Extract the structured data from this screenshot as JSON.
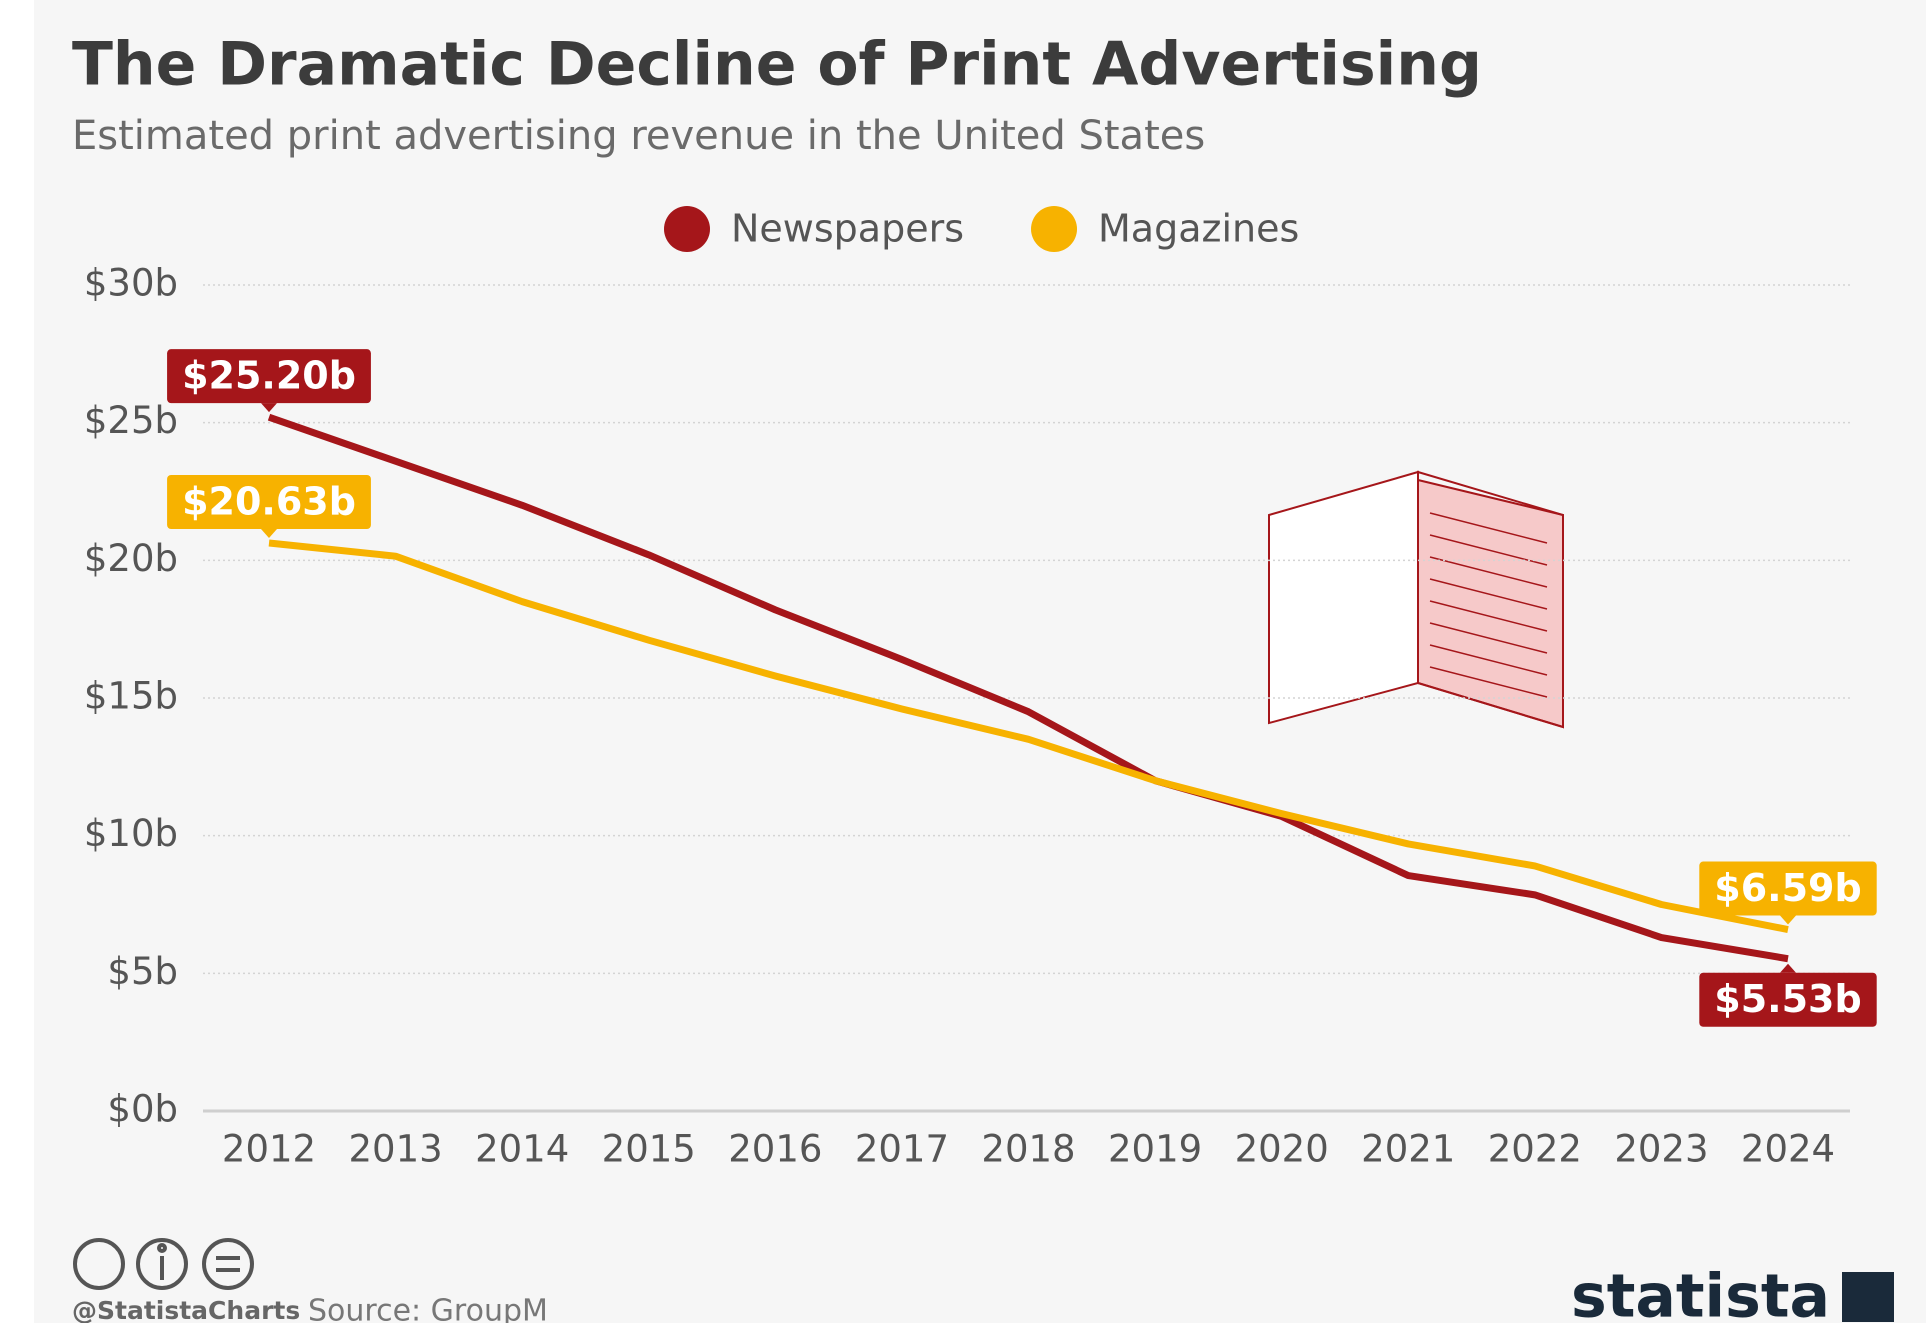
{
  "chart_data": {
    "type": "line",
    "title": "The Dramatic Decline of Print Advertising",
    "subtitle": "Estimated print advertising revenue in the United States",
    "categories": [
      "2012",
      "2013",
      "2014",
      "2015",
      "2016",
      "2017",
      "2018",
      "2019",
      "2020",
      "2021",
      "2022",
      "2023",
      "2024"
    ],
    "series": [
      {
        "name": "Newspapers",
        "color": "#a5161a",
        "values": [
          25.2,
          23.6,
          22.0,
          20.2,
          18.2,
          16.4,
          14.5,
          12.0,
          10.7,
          8.55,
          7.85,
          6.3,
          5.53
        ],
        "value_labels": [
          "$25.20b",
          null,
          null,
          null,
          null,
          null,
          null,
          null,
          null,
          null,
          null,
          null,
          "$5.53b"
        ]
      },
      {
        "name": "Magazines",
        "color": "#f7b200",
        "values": [
          20.63,
          20.15,
          18.5,
          17.1,
          15.8,
          14.6,
          13.5,
          12.0,
          10.8,
          9.7,
          8.9,
          7.5,
          6.59
        ],
        "value_labels": [
          "$20.63b",
          null,
          null,
          null,
          null,
          null,
          null,
          null,
          null,
          null,
          null,
          null,
          "$6.59b"
        ]
      }
    ],
    "ylim": [
      0,
      30
    ],
    "yticks": [
      {
        "value": 0,
        "label": "$0b"
      },
      {
        "value": 5,
        "label": "$5b"
      },
      {
        "value": 10,
        "label": "$10b"
      },
      {
        "value": 15,
        "label": "$15b"
      },
      {
        "value": 20,
        "label": "$20b"
      },
      {
        "value": 25,
        "label": "$25b"
      },
      {
        "value": 30,
        "label": "$30b"
      }
    ],
    "grid": true,
    "legend": "top",
    "credit": "@StatistaCharts",
    "source": "Source: GroupM",
    "brand": "statista"
  }
}
